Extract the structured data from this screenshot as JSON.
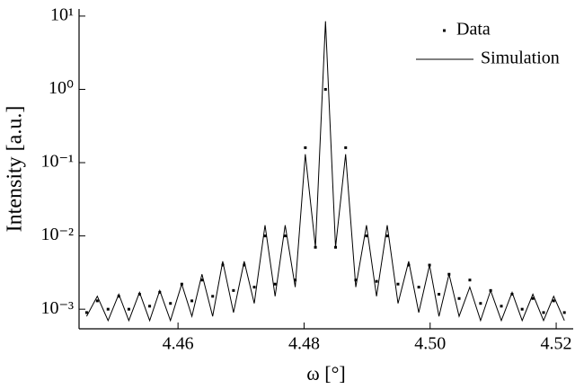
{
  "chart_data": {
    "type": "scatter",
    "x_label": "ω [°]",
    "y_label": "Intensity [a.u.]",
    "xlim": [
      4.4443,
      4.5227
    ],
    "xticks": [
      4.46,
      4.48,
      {
        "value": 4.5,
        "label": "4.50"
      },
      4.52
    ],
    "ylim": [
      0.00054,
      12.5
    ],
    "y_scale": "log",
    "yticks": [
      {
        "value": 10,
        "label": "10¹"
      },
      {
        "value": 1,
        "label": "10⁰"
      },
      {
        "value": 0.1,
        "label": "10⁻¹"
      },
      {
        "value": 0.01,
        "label": "10⁻²"
      },
      {
        "value": 0.001,
        "label": "10⁻³"
      }
    ],
    "legend": "upper right",
    "series": [
      {
        "name": "Data",
        "type": "scatter",
        "color": "#000000",
        "x": [
          4.4455,
          4.4472,
          4.4489,
          4.4506,
          4.4522,
          4.4539,
          4.4555,
          4.4571,
          4.4588,
          4.4606,
          4.4622,
          4.4638,
          4.4655,
          4.4671,
          4.4688,
          4.4705,
          4.4721,
          4.4738,
          4.4754,
          4.477,
          4.4786,
          4.4802,
          4.4818,
          4.4834,
          4.485,
          4.4866,
          4.4882,
          4.4899,
          4.4915,
          4.4932,
          4.4949,
          4.4966,
          4.4982,
          4.4999,
          4.5014,
          4.503,
          4.5046,
          4.5063,
          4.508,
          4.5096,
          4.5113,
          4.513,
          4.5146,
          4.5163,
          4.518,
          4.5196,
          4.5213
        ],
        "values": [
          0.0009,
          0.0013,
          0.001,
          0.0015,
          0.001,
          0.0016,
          0.0011,
          0.0017,
          0.0012,
          0.0022,
          0.0013,
          0.0025,
          0.0015,
          0.004,
          0.0018,
          0.004,
          0.002,
          0.01,
          0.0022,
          0.01,
          0.0025,
          0.16,
          0.007,
          1.0,
          0.007,
          0.16,
          0.0025,
          0.01,
          0.0024,
          0.01,
          0.0022,
          0.004,
          0.002,
          0.004,
          0.0016,
          0.003,
          0.0014,
          0.0025,
          0.0012,
          0.0018,
          0.0011,
          0.0016,
          0.001,
          0.0014,
          0.0009,
          0.0013,
          0.0009
        ]
      },
      {
        "name": "Simulation",
        "type": "line",
        "color": "#000000",
        "x": [
          4.4455,
          4.4472,
          4.4489,
          4.4506,
          4.4522,
          4.4539,
          4.4555,
          4.4571,
          4.4588,
          4.4606,
          4.4622,
          4.4638,
          4.4655,
          4.4671,
          4.4688,
          4.4705,
          4.4721,
          4.4738,
          4.4754,
          4.477,
          4.4786,
          4.4802,
          4.4818,
          4.4834,
          4.485,
          4.4866,
          4.4882,
          4.4899,
          4.4915,
          4.4932,
          4.4949,
          4.4966,
          4.4982,
          4.4999,
          4.5014,
          4.503,
          4.5046,
          4.5063,
          4.508,
          4.5096,
          4.5113,
          4.513,
          4.5146,
          4.5163,
          4.518,
          4.5196,
          4.5213
        ],
        "values": [
          0.0008,
          0.0015,
          0.0007,
          0.0016,
          0.0007,
          0.0017,
          0.0007,
          0.0018,
          0.0007,
          0.0022,
          0.0008,
          0.003,
          0.0008,
          0.0045,
          0.0009,
          0.0045,
          0.0012,
          0.014,
          0.0015,
          0.014,
          0.002,
          0.13,
          0.007,
          8.5,
          0.007,
          0.13,
          0.002,
          0.014,
          0.0015,
          0.014,
          0.0012,
          0.0045,
          0.0009,
          0.004,
          0.0008,
          0.003,
          0.0008,
          0.002,
          0.0007,
          0.0018,
          0.0007,
          0.0017,
          0.0007,
          0.0016,
          0.0007,
          0.0015,
          0.0007
        ]
      }
    ]
  }
}
